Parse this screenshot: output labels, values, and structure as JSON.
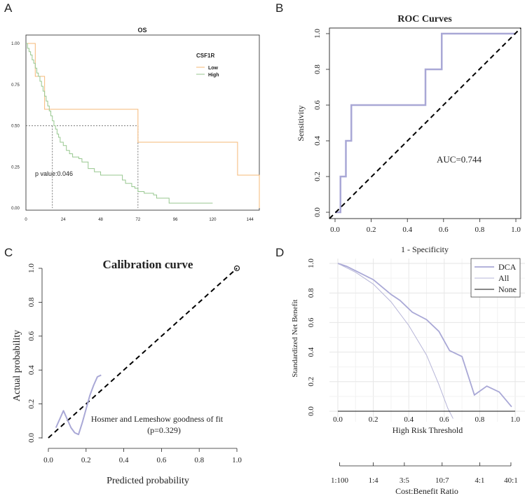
{
  "panel_labels": [
    "A",
    "B",
    "C",
    "D"
  ],
  "colors": {
    "low": "#f5b877",
    "high": "#97c78f",
    "roc": "#a9a8d6",
    "dca": "#a9a8d6",
    "all": "#b6b5d8",
    "none": "#111111",
    "diag": "#000000",
    "grid": "#e6e6e6",
    "median": "#555555"
  },
  "chart_data": [
    {
      "type": "line",
      "subtype": "kaplan-meier",
      "title": "OS",
      "legend_title": "CSF1R",
      "legend_position": "top-right",
      "xlabel": "",
      "ylabel": "",
      "xlim": [
        0,
        150
      ],
      "ylim": [
        0,
        1
      ],
      "xticks": [
        0,
        24,
        48,
        72,
        96,
        120,
        144
      ],
      "yticks": [
        0.0,
        0.25,
        0.5,
        0.75,
        1.0
      ],
      "ytick_labels": [
        "0.00",
        "0.25",
        "0.50",
        "0.75",
        "1.00"
      ],
      "annotation": "p value:0.046",
      "median_lines": {
        "y": 0.5,
        "x": [
          17,
          72
        ]
      },
      "series": [
        {
          "name": "Low",
          "color_key": "low",
          "times": [
            0,
            6,
            7,
            12,
            72,
            136,
            150
          ],
          "survival": [
            1.0,
            0.8,
            0.8,
            0.6,
            0.4,
            0.2,
            0.0
          ]
        },
        {
          "name": "High",
          "color_key": "high",
          "times": [
            0,
            1,
            2,
            3,
            4,
            5,
            6,
            7,
            8,
            9,
            10,
            11,
            12,
            13,
            14,
            15,
            16,
            17,
            18,
            19,
            20,
            21,
            22,
            24,
            26,
            28,
            30,
            34,
            36,
            40,
            44,
            48,
            60,
            62,
            64,
            68,
            70,
            72,
            76,
            82,
            84,
            92,
            120
          ],
          "survival": [
            1.0,
            0.97,
            0.95,
            0.93,
            0.9,
            0.88,
            0.85,
            0.82,
            0.8,
            0.77,
            0.74,
            0.71,
            0.68,
            0.65,
            0.62,
            0.59,
            0.56,
            0.53,
            0.5,
            0.48,
            0.45,
            0.43,
            0.4,
            0.38,
            0.35,
            0.33,
            0.31,
            0.3,
            0.28,
            0.24,
            0.22,
            0.2,
            0.2,
            0.17,
            0.15,
            0.13,
            0.12,
            0.1,
            0.09,
            0.08,
            0.06,
            0.03,
            0.03
          ]
        }
      ]
    },
    {
      "type": "line",
      "subtype": "roc",
      "title": "ROC Curves",
      "xlabel": "1 - Specificity",
      "ylabel": "Sensitivity",
      "xlim": [
        0,
        1
      ],
      "ylim": [
        0,
        1
      ],
      "xticks": [
        0.0,
        0.2,
        0.4,
        0.6,
        0.8,
        1.0
      ],
      "yticks": [
        0.0,
        0.2,
        0.4,
        0.6,
        0.8,
        1.0
      ],
      "annotation": "AUC=0.744",
      "series": [
        {
          "name": "ROC",
          "color_key": "roc",
          "x": [
            0,
            0.03,
            0.03,
            0.06,
            0.06,
            0.09,
            0.09,
            0.5,
            0.5,
            0.59,
            0.59,
            1.0
          ],
          "y": [
            0,
            0,
            0.2,
            0.2,
            0.4,
            0.4,
            0.6,
            0.6,
            0.8,
            0.8,
            1.0,
            1.0
          ]
        }
      ],
      "reference_line": {
        "x": [
          0,
          1
        ],
        "y": [
          0,
          1
        ]
      }
    },
    {
      "type": "line",
      "subtype": "calibration",
      "title": "Calibration curve",
      "xlabel": "Predicted probability",
      "ylabel": "Actual probability",
      "xlim": [
        0,
        1
      ],
      "ylim": [
        0,
        1
      ],
      "xticks": [
        0.0,
        0.2,
        0.4,
        0.6,
        0.8,
        1.0
      ],
      "yticks": [
        0.0,
        0.2,
        0.4,
        0.6,
        0.8,
        1.0
      ],
      "annotation_line1": "Hosmer and Lemeshow goodness of fit",
      "annotation_line2": "(p=0.329)",
      "marker_point": {
        "x": 1.0,
        "y": 1.0
      },
      "series": [
        {
          "name": "Calibration",
          "color_key": "roc",
          "x": [
            0.04,
            0.06,
            0.08,
            0.1,
            0.12,
            0.14,
            0.16,
            0.18,
            0.2,
            0.22,
            0.24,
            0.26,
            0.28
          ],
          "y": [
            0.06,
            0.11,
            0.16,
            0.11,
            0.06,
            0.03,
            0.02,
            0.09,
            0.17,
            0.25,
            0.31,
            0.36,
            0.37
          ]
        }
      ],
      "reference_line": {
        "x": [
          0,
          1
        ],
        "y": [
          0,
          1
        ]
      }
    },
    {
      "type": "line",
      "subtype": "decision-curve",
      "title": "",
      "xlabel": "High Risk Threshold",
      "ylabel": "Standardized Net Benefit",
      "xlabel2": "Cost:Benefit Ratio",
      "xlim": [
        0,
        1
      ],
      "ylim": [
        -0.05,
        1.0
      ],
      "xticks": [
        0.0,
        0.2,
        0.4,
        0.6,
        0.8,
        1.0
      ],
      "yticks": [
        0.0,
        0.2,
        0.4,
        0.6,
        0.8,
        1.0
      ],
      "ratio_ticks": [
        0.01,
        0.2,
        0.375,
        0.588,
        0.8,
        0.976
      ],
      "ratio_labels": [
        "1:100",
        "1:4",
        "3:5",
        "10:7",
        "4:1",
        "40:1"
      ],
      "legend_position": "top-right",
      "series": [
        {
          "name": "DCA",
          "color_key": "dca",
          "x": [
            0.0,
            0.05,
            0.1,
            0.2,
            0.3,
            0.35,
            0.42,
            0.5,
            0.57,
            0.63,
            0.7,
            0.77,
            0.84,
            0.91,
            0.98
          ],
          "y": [
            1.0,
            0.98,
            0.95,
            0.89,
            0.79,
            0.75,
            0.67,
            0.62,
            0.54,
            0.41,
            0.37,
            0.11,
            0.17,
            0.13,
            0.03
          ]
        },
        {
          "name": "All",
          "color_key": "all",
          "x": [
            0.0,
            0.05,
            0.1,
            0.2,
            0.3,
            0.4,
            0.5,
            0.57,
            0.62,
            0.65
          ],
          "y": [
            1.0,
            0.97,
            0.94,
            0.86,
            0.74,
            0.58,
            0.38,
            0.18,
            0.02,
            -0.05
          ]
        },
        {
          "name": "None",
          "color_key": "none",
          "x": [
            0.0,
            1.0
          ],
          "y": [
            0.0,
            0.0
          ]
        }
      ]
    }
  ]
}
